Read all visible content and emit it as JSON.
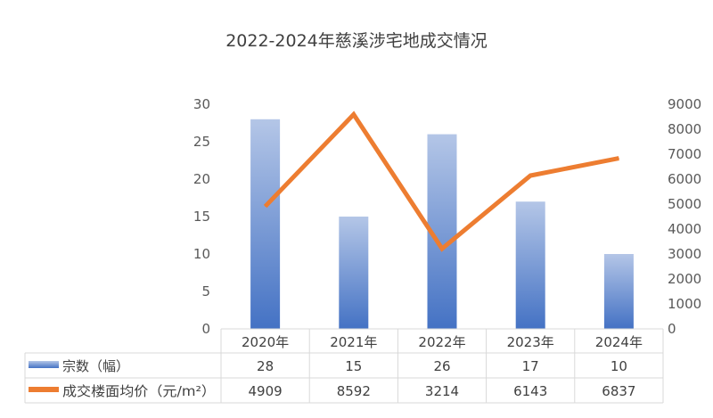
{
  "chart_data": {
    "type": "bar",
    "title": "2022-2024年慈溪涉宅地成交情况",
    "categories": [
      "2020年",
      "2021年",
      "2022年",
      "2023年",
      "2024年"
    ],
    "series": [
      {
        "name": "宗数（幅）",
        "type": "bar",
        "axis": "left",
        "color": "#4472C4",
        "values": [
          28,
          15,
          26,
          17,
          10
        ]
      },
      {
        "name": "成交楼面均价（元/m²）",
        "type": "line",
        "axis": "right",
        "color": "#ED7D31",
        "values": [
          4909,
          8592,
          3214,
          6143,
          6837
        ]
      }
    ],
    "y_left": {
      "min": 0,
      "max": 30,
      "ticks": [
        0,
        5,
        10,
        15,
        20,
        25,
        30
      ]
    },
    "y_right": {
      "min": 0,
      "max": 9000,
      "ticks": [
        0,
        1000,
        2000,
        3000,
        4000,
        5000,
        6000,
        7000,
        8000,
        9000
      ]
    },
    "grid": false,
    "legend": "data-table"
  }
}
